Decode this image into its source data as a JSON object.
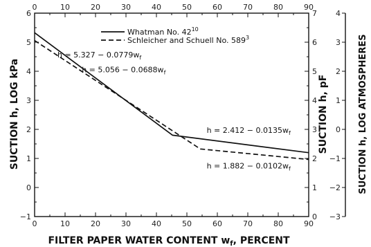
{
  "chart_data": {
    "type": "line",
    "xlabel_main": "FILTER PAPER WATER CONTENT w",
    "xlabel_sub": "f",
    "xlabel_tail": ", PERCENT",
    "ylabel_left": "SUCTION h, LOG kPa",
    "ylabel_mid": "SUCTION h, pF",
    "ylabel_right": "SUCTION h, LOG ATMOSPHERES",
    "xlim": [
      0,
      90
    ],
    "ylim": [
      -1,
      6
    ],
    "x_ticks": [
      "0",
      "10",
      "20",
      "30",
      "40",
      "50",
      "60",
      "70",
      "80",
      "90"
    ],
    "x_ticks_top": [
      "0",
      "10",
      "20",
      "30",
      "40",
      "50",
      "60",
      "70",
      "80",
      "90"
    ],
    "y_ticks_left": [
      "-1",
      "0",
      "1",
      "2",
      "3",
      "4",
      "5",
      "6"
    ],
    "y_ticks_mid": [
      "0",
      "1",
      "2",
      "3",
      "4",
      "5",
      "6",
      "7"
    ],
    "y_ticks_right": [
      "-3",
      "-2",
      "-1",
      "0",
      "1",
      "2",
      "3",
      "4"
    ],
    "series": [
      {
        "name": "Whatman No. 42",
        "name_sup": "10",
        "style": "solid",
        "points": [
          [
            0,
            5.327
          ],
          [
            45.3,
            1.8
          ],
          [
            90,
            1.197
          ]
        ]
      },
      {
        "name": "Schleicher and Schuell No. 589",
        "name_sup": "3",
        "style": "dashed",
        "points": [
          [
            0,
            5.056
          ],
          [
            54.4,
            1.327
          ],
          [
            90,
            0.964
          ]
        ]
      }
    ],
    "annotations": [
      {
        "text": "h = 5.327 − 0.0779w",
        "sub": "f",
        "x": 7.5,
        "y": 4.48
      },
      {
        "text": "h = 5.056 − 0.0688w",
        "sub": "f",
        "x": 15.5,
        "y": 3.97
      },
      {
        "text": "h = 2.412 − 0.0135w",
        "sub": "f",
        "x": 56.5,
        "y": 1.88
      },
      {
        "text": "h = 1.882 − 0.0102w",
        "sub": "f",
        "x": 56.5,
        "y": 0.66
      }
    ],
    "legend_position": "top-right",
    "grid": false
  }
}
